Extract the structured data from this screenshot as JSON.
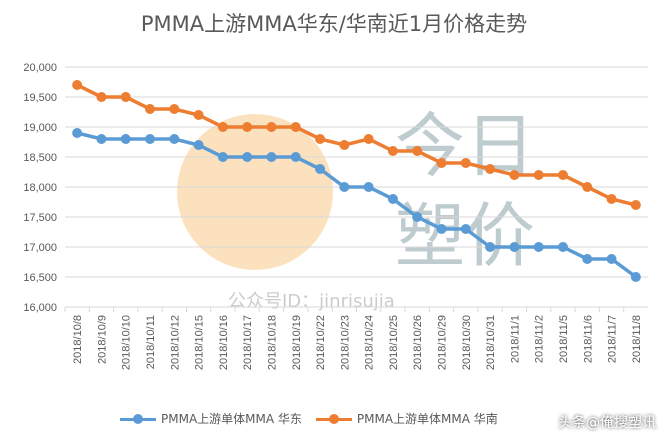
{
  "chart_data": {
    "type": "line",
    "title": "PMMA上游MMA华东/华南近1月价格走势",
    "categories": [
      "2018/10/8",
      "2018/10/9",
      "2018/10/10",
      "2018/10/11",
      "2018/10/12",
      "2018/10/15",
      "2018/10/16",
      "2018/10/17",
      "2018/10/18",
      "2018/10/19",
      "2018/10/22",
      "2018/10/23",
      "2018/10/24",
      "2018/10/25",
      "2018/10/26",
      "2018/10/29",
      "2018/10/30",
      "2018/10/31",
      "2018/11/1",
      "2018/11/2",
      "2018/11/5",
      "2018/11/6",
      "2018/11/7",
      "2018/11/8"
    ],
    "series": [
      {
        "name": "PMMA上游单体MMA 华东",
        "color": "#5b9bd5",
        "values": [
          18900,
          18800,
          18800,
          18800,
          18800,
          18700,
          18500,
          18500,
          18500,
          18500,
          18300,
          18000,
          18000,
          17800,
          17500,
          17300,
          17300,
          17000,
          17000,
          17000,
          17000,
          16800,
          16800,
          16500
        ]
      },
      {
        "name": "PMMA上游单体MMA 华南",
        "color": "#ed7d31",
        "values": [
          19700,
          19500,
          19500,
          19300,
          19300,
          19200,
          19000,
          19000,
          19000,
          19000,
          18800,
          18700,
          18800,
          18600,
          18600,
          18400,
          18400,
          18300,
          18200,
          18200,
          18200,
          18000,
          17800,
          17700
        ]
      }
    ],
    "ylim": [
      16000,
      20000
    ],
    "yticks": [
      "16,000",
      "16,500",
      "17,000",
      "17,500",
      "18,000",
      "18,500",
      "19,000",
      "19,500",
      "20,000"
    ],
    "grid": true,
    "legend": "bottom",
    "watermark": [
      "今日塑价",
      "公众号ID：jinrisujia"
    ]
  },
  "overlay_watermark": "头条@俺搜塑讯"
}
